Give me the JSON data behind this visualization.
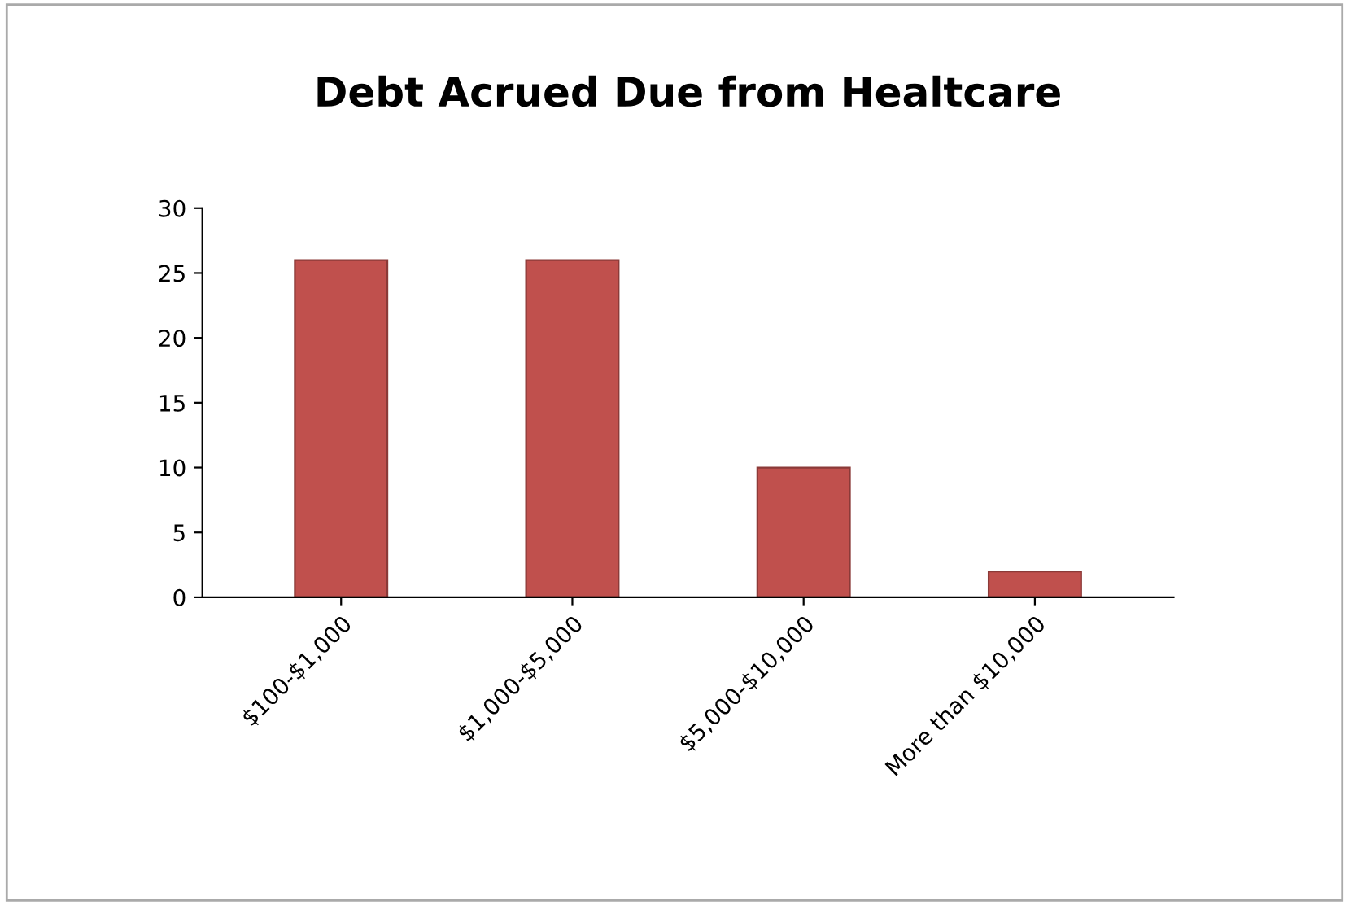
{
  "chart_data": {
    "type": "bar",
    "title": "Debt Acrued Due from Healtcare",
    "categories": [
      "$100-$1,000",
      "$1,000-$5,000",
      "$5,000-$10,000",
      "More than $10,000"
    ],
    "values": [
      26,
      26,
      10,
      2
    ],
    "color": "#c0504d",
    "ylim": [
      0,
      30
    ],
    "yticks": [
      0,
      5,
      10,
      15,
      20,
      25,
      30
    ],
    "grid": false,
    "legend": false
  }
}
